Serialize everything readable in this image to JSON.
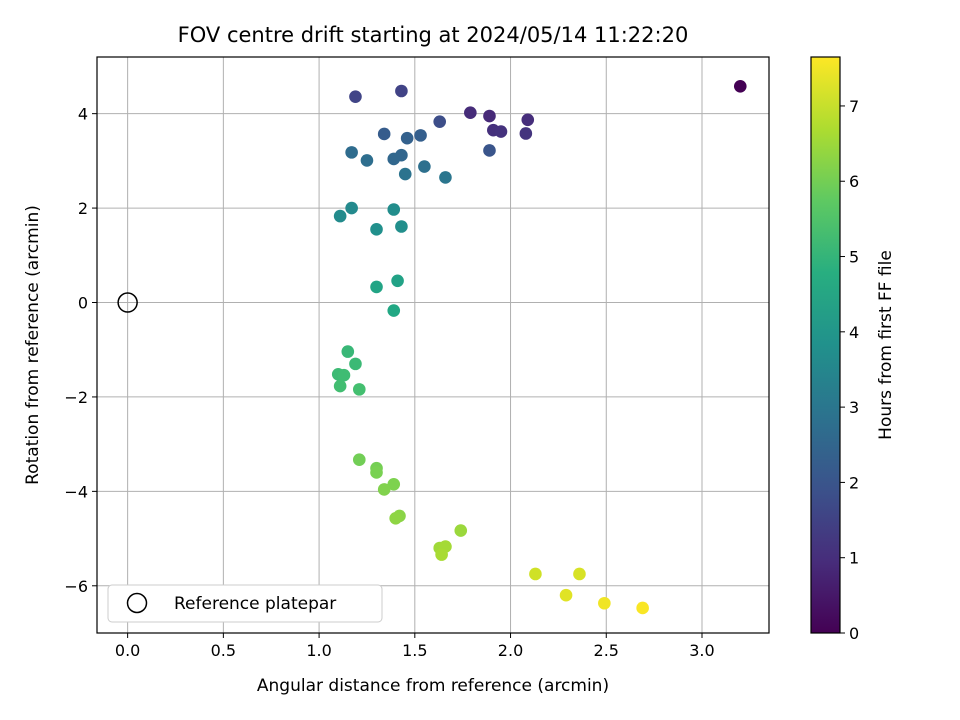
{
  "chart_data": {
    "type": "scatter",
    "title": "FOV centre drift starting at 2024/05/14 11:22:20",
    "xlabel": "Angular distance from reference (arcmin)",
    "ylabel": "Rotation from reference (arcmin)",
    "colorbar_label": "Hours from first FF file",
    "xlim": [
      -0.16,
      3.35
    ],
    "ylim": [
      -7.0,
      5.2
    ],
    "clim": [
      0,
      7.65
    ],
    "x_ticks": [
      0.0,
      0.5,
      1.0,
      1.5,
      2.0,
      2.5,
      3.0
    ],
    "x_tick_labels": [
      "0.0",
      "0.5",
      "1.0",
      "1.5",
      "2.0",
      "2.5",
      "3.0"
    ],
    "y_ticks": [
      -6,
      -4,
      -2,
      0,
      2,
      4
    ],
    "y_tick_labels": [
      "−6",
      "−4",
      "−2",
      "0",
      "2",
      "4"
    ],
    "colorbar_ticks": [
      0,
      1,
      2,
      3,
      4,
      5,
      6,
      7
    ],
    "colorbar_tick_labels": [
      "0",
      "1",
      "2",
      "3",
      "4",
      "5",
      "6",
      "7"
    ],
    "grid": true,
    "colormap": "viridis",
    "legend": {
      "placement": "lower-left",
      "label": "Reference platepar"
    },
    "reference_point": {
      "x": 0.0,
      "y": 0.0
    },
    "points": [
      {
        "x": 3.2,
        "y": 4.58,
        "hours": 0.0
      },
      {
        "x": 1.89,
        "y": 3.95,
        "hours": 0.9
      },
      {
        "x": 1.79,
        "y": 4.02,
        "hours": 0.95
      },
      {
        "x": 2.09,
        "y": 3.87,
        "hours": 1.0
      },
      {
        "x": 1.91,
        "y": 3.65,
        "hours": 1.05
      },
      {
        "x": 1.95,
        "y": 3.62,
        "hours": 1.1
      },
      {
        "x": 2.08,
        "y": 3.58,
        "hours": 1.15
      },
      {
        "x": 1.43,
        "y": 4.48,
        "hours": 1.5
      },
      {
        "x": 1.19,
        "y": 4.36,
        "hours": 1.55
      },
      {
        "x": 1.63,
        "y": 3.83,
        "hours": 1.8
      },
      {
        "x": 1.89,
        "y": 3.22,
        "hours": 2.0
      },
      {
        "x": 1.34,
        "y": 3.57,
        "hours": 2.2
      },
      {
        "x": 1.53,
        "y": 3.54,
        "hours": 2.3
      },
      {
        "x": 1.46,
        "y": 3.48,
        "hours": 2.35
      },
      {
        "x": 1.43,
        "y": 3.12,
        "hours": 2.5
      },
      {
        "x": 1.39,
        "y": 3.04,
        "hours": 2.55
      },
      {
        "x": 1.17,
        "y": 3.18,
        "hours": 2.7
      },
      {
        "x": 1.25,
        "y": 3.01,
        "hours": 2.75
      },
      {
        "x": 1.55,
        "y": 2.88,
        "hours": 2.8
      },
      {
        "x": 1.45,
        "y": 2.72,
        "hours": 2.9
      },
      {
        "x": 1.66,
        "y": 2.65,
        "hours": 3.0
      },
      {
        "x": 1.17,
        "y": 2.0,
        "hours": 3.6
      },
      {
        "x": 1.11,
        "y": 1.83,
        "hours": 3.65
      },
      {
        "x": 1.39,
        "y": 1.97,
        "hours": 3.7
      },
      {
        "x": 1.43,
        "y": 1.61,
        "hours": 3.75
      },
      {
        "x": 1.3,
        "y": 1.55,
        "hours": 3.8
      },
      {
        "x": 1.41,
        "y": 0.46,
        "hours": 4.4
      },
      {
        "x": 1.3,
        "y": 0.33,
        "hours": 4.45
      },
      {
        "x": 1.39,
        "y": -0.17,
        "hours": 4.6
      },
      {
        "x": 1.15,
        "y": -1.04,
        "hours": 5.1
      },
      {
        "x": 1.19,
        "y": -1.3,
        "hours": 5.15
      },
      {
        "x": 1.1,
        "y": -1.52,
        "hours": 5.2
      },
      {
        "x": 1.13,
        "y": -1.54,
        "hours": 5.25
      },
      {
        "x": 1.11,
        "y": -1.77,
        "hours": 5.3
      },
      {
        "x": 1.21,
        "y": -1.84,
        "hours": 5.35
      },
      {
        "x": 1.21,
        "y": -3.33,
        "hours": 6.0
      },
      {
        "x": 1.3,
        "y": -3.51,
        "hours": 6.05
      },
      {
        "x": 1.3,
        "y": -3.6,
        "hours": 6.1
      },
      {
        "x": 1.39,
        "y": -3.85,
        "hours": 6.15
      },
      {
        "x": 1.34,
        "y": -3.96,
        "hours": 6.2
      },
      {
        "x": 1.42,
        "y": -4.52,
        "hours": 6.3
      },
      {
        "x": 1.4,
        "y": -4.57,
        "hours": 6.35
      },
      {
        "x": 1.74,
        "y": -4.83,
        "hours": 6.5
      },
      {
        "x": 1.63,
        "y": -5.2,
        "hours": 6.55
      },
      {
        "x": 1.66,
        "y": -5.17,
        "hours": 6.6
      },
      {
        "x": 1.64,
        "y": -5.34,
        "hours": 6.65
      },
      {
        "x": 2.13,
        "y": -5.75,
        "hours": 7.1
      },
      {
        "x": 2.36,
        "y": -5.75,
        "hours": 7.2
      },
      {
        "x": 2.29,
        "y": -6.2,
        "hours": 7.3
      },
      {
        "x": 2.49,
        "y": -6.37,
        "hours": 7.5
      },
      {
        "x": 2.69,
        "y": -6.47,
        "hours": 7.6
      }
    ]
  }
}
